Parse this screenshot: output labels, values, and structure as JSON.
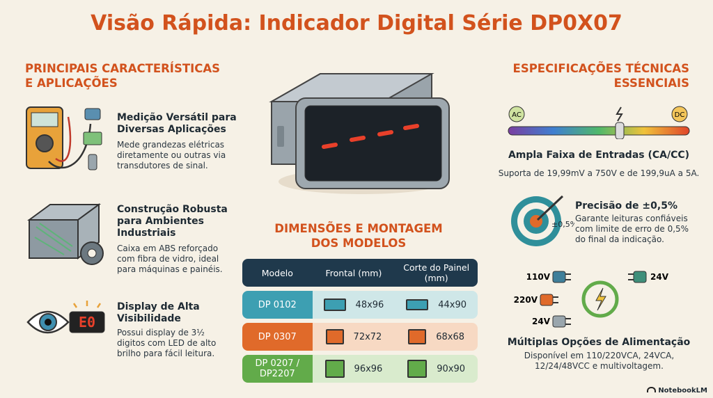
{
  "header": {
    "title": "Visão Rápida: Indicador Digital Série DP0X07"
  },
  "features": {
    "title": "PRINCIPAIS CARACTERÍSTICAS E APLICAÇÕES",
    "items": [
      {
        "title": "Medição Versátil para Diversas Aplicações",
        "text": "Mede grandezas elétricas diretamente ou outras via transdutores de sinal."
      },
      {
        "title": "Construção Robusta para Ambientes Industriais",
        "text": "Caixa em ABS reforçado com fibra de vidro, ideal para máquinas e painéis."
      },
      {
        "title": "Display de Alta Visibilidade",
        "text": "Possui display de 3½ digitos com LED de alto brilho para fácil leitura.",
        "icon_text": "E0"
      }
    ]
  },
  "dimensions": {
    "title": "DIMENSÕES E MONTAGEM DOS MODELOS",
    "table": {
      "headers": [
        "Modelo",
        "Frontal (mm)",
        "Corte do Painel (mm)"
      ],
      "rows": [
        [
          "DP 0102",
          "48x96",
          "44x90"
        ],
        [
          "DP 0307",
          "72x72",
          "68x68"
        ],
        [
          "DP 0207 / DP2207",
          "96x96",
          "90x90"
        ]
      ]
    }
  },
  "specs": {
    "title": "ESPECIFICAÇÕES TÉCNICAS ESSENCIAIS",
    "range": {
      "left": "AC",
      "right": "DC",
      "title": "Ampla Faixa de Entradas (CA/CC)",
      "text": "Suporta de 19,99mV a 750V e de 199,9uA a 5A."
    },
    "precision": {
      "badge": "±0,5%",
      "title": "Precisão de ±0,5%",
      "text": "Garante leituras confiáveis com limite de erro de 0,5% do final da indicação."
    },
    "power": {
      "plugs": [
        "110V",
        "220V",
        "24V",
        "24V"
      ],
      "title": "Múltiplas Opções de Alimentação",
      "text": "Disponível em 110/220VCA, 24VCA, 12/24/48VCC e multivoltagem."
    }
  },
  "footer": {
    "brand": "NotebookLM"
  }
}
